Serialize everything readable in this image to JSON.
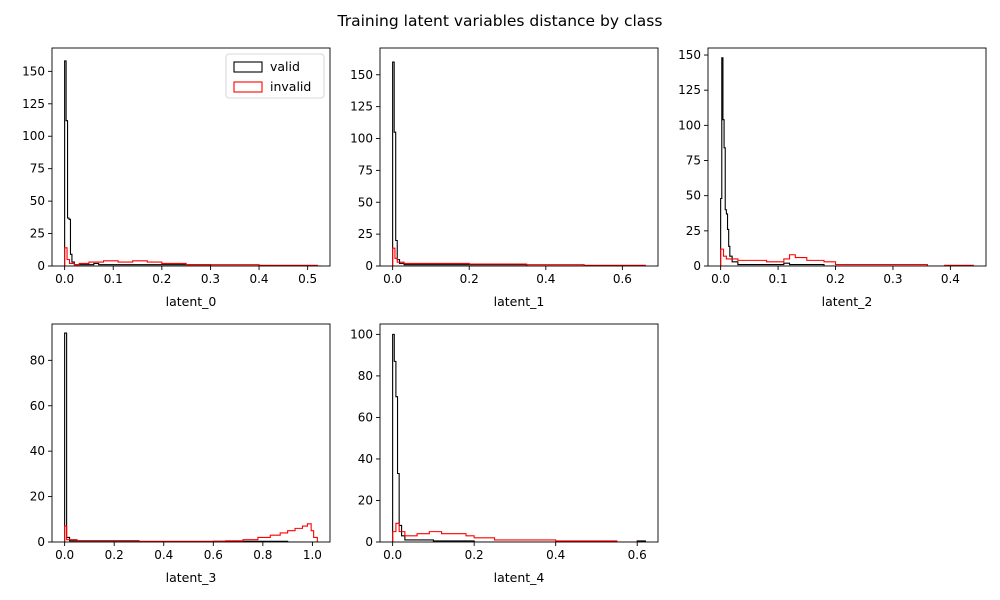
{
  "figure": {
    "title": "Training latent variables distance by class"
  },
  "legend": {
    "entries": [
      {
        "label": "valid",
        "color": "#000000"
      },
      {
        "label": "invalid",
        "color": "#ff0000"
      }
    ],
    "location": "upper right of first subplot"
  },
  "chart_data": [
    {
      "type": "histogram-step",
      "xlabel": "latent_0",
      "xlim": [
        -0.026,
        0.546
      ],
      "ylim": [
        0,
        168
      ],
      "xticks": [
        0.0,
        0.1,
        0.2,
        0.3,
        0.4,
        0.5
      ],
      "xtick_labels": [
        "0.0",
        "0.1",
        "0.2",
        "0.3",
        "0.4",
        "0.5"
      ],
      "yticks": [
        0,
        25,
        50,
        75,
        100,
        125,
        150
      ],
      "ytick_labels": [
        "0",
        "25",
        "50",
        "75",
        "100",
        "125",
        "150"
      ],
      "series": [
        {
          "name": "valid",
          "color": "#000000",
          "points": [
            [
              0,
              0
            ],
            [
              0,
              158
            ],
            [
              0.003,
              158
            ],
            [
              0.003,
              112
            ],
            [
              0.006,
              112
            ],
            [
              0.006,
              37
            ],
            [
              0.009,
              37
            ],
            [
              0.009,
              36
            ],
            [
              0.012,
              36
            ],
            [
              0.012,
              9
            ],
            [
              0.015,
              9
            ],
            [
              0.015,
              3
            ],
            [
              0.02,
              3
            ],
            [
              0.02,
              1
            ],
            [
              0.06,
              1
            ],
            [
              0.06,
              2
            ],
            [
              0.07,
              2
            ],
            [
              0.07,
              1
            ],
            [
              0.3,
              1
            ],
            [
              0.3,
              0
            ],
            [
              0.53,
              0
            ]
          ]
        },
        {
          "name": "invalid",
          "color": "#ff0000",
          "points": [
            [
              0,
              0
            ],
            [
              0,
              14
            ],
            [
              0.005,
              14
            ],
            [
              0.005,
              5
            ],
            [
              0.01,
              5
            ],
            [
              0.01,
              2
            ],
            [
              0.02,
              2
            ],
            [
              0.02,
              1
            ],
            [
              0.03,
              1
            ],
            [
              0.03,
              2
            ],
            [
              0.05,
              2
            ],
            [
              0.05,
              3
            ],
            [
              0.08,
              3
            ],
            [
              0.08,
              4
            ],
            [
              0.11,
              4
            ],
            [
              0.11,
              3
            ],
            [
              0.14,
              3
            ],
            [
              0.14,
              4
            ],
            [
              0.17,
              4
            ],
            [
              0.17,
              3
            ],
            [
              0.2,
              3
            ],
            [
              0.2,
              2
            ],
            [
              0.25,
              2
            ],
            [
              0.25,
              1
            ],
            [
              0.4,
              1
            ],
            [
              0.4,
              0.5
            ],
            [
              0.52,
              0.5
            ],
            [
              0.52,
              0
            ]
          ]
        }
      ]
    },
    {
      "type": "histogram-step",
      "xlabel": "latent_1",
      "xlim": [
        -0.033,
        0.693
      ],
      "ylim": [
        0,
        171
      ],
      "xticks": [
        0.0,
        0.2,
        0.4,
        0.6
      ],
      "xtick_labels": [
        "0.0",
        "0.2",
        "0.4",
        "0.6"
      ],
      "yticks": [
        0,
        25,
        50,
        75,
        100,
        125,
        150
      ],
      "ytick_labels": [
        "0",
        "25",
        "50",
        "75",
        "100",
        "125",
        "150"
      ],
      "series": [
        {
          "name": "valid",
          "color": "#000000",
          "points": [
            [
              0,
              0
            ],
            [
              0,
              160
            ],
            [
              0.004,
              160
            ],
            [
              0.004,
              105
            ],
            [
              0.008,
              105
            ],
            [
              0.008,
              20
            ],
            [
              0.012,
              20
            ],
            [
              0.012,
              5
            ],
            [
              0.018,
              5
            ],
            [
              0.018,
              2
            ],
            [
              0.03,
              2
            ],
            [
              0.03,
              1
            ],
            [
              0.35,
              1
            ],
            [
              0.35,
              0
            ],
            [
              0.66,
              0
            ]
          ]
        },
        {
          "name": "invalid",
          "color": "#ff0000",
          "points": [
            [
              0,
              0
            ],
            [
              0,
              14
            ],
            [
              0.006,
              14
            ],
            [
              0.006,
              6
            ],
            [
              0.012,
              6
            ],
            [
              0.012,
              3
            ],
            [
              0.03,
              3
            ],
            [
              0.03,
              2
            ],
            [
              0.2,
              2
            ],
            [
              0.2,
              1.5
            ],
            [
              0.35,
              1.5
            ],
            [
              0.35,
              1
            ],
            [
              0.5,
              1
            ],
            [
              0.5,
              0.5
            ],
            [
              0.66,
              0.5
            ],
            [
              0.66,
              0
            ]
          ]
        }
      ]
    },
    {
      "type": "histogram-step",
      "xlabel": "latent_2",
      "xlim": [
        -0.022,
        0.462
      ],
      "ylim": [
        0,
        155
      ],
      "xticks": [
        0.0,
        0.1,
        0.2,
        0.3,
        0.4
      ],
      "xtick_labels": [
        "0.0",
        "0.1",
        "0.2",
        "0.3",
        "0.4"
      ],
      "yticks": [
        0,
        25,
        50,
        75,
        100,
        125,
        150
      ],
      "ytick_labels": [
        "0",
        "25",
        "50",
        "75",
        "100",
        "125",
        "150"
      ],
      "series": [
        {
          "name": "valid",
          "color": "#000000",
          "points": [
            [
              0,
              0
            ],
            [
              0,
              48
            ],
            [
              0.002,
              48
            ],
            [
              0.002,
              148
            ],
            [
              0.004,
              148
            ],
            [
              0.004,
              104
            ],
            [
              0.006,
              104
            ],
            [
              0.006,
              84
            ],
            [
              0.008,
              84
            ],
            [
              0.008,
              40
            ],
            [
              0.01,
              40
            ],
            [
              0.01,
              37
            ],
            [
              0.012,
              37
            ],
            [
              0.012,
              26
            ],
            [
              0.014,
              26
            ],
            [
              0.014,
              14
            ],
            [
              0.016,
              14
            ],
            [
              0.016,
              7
            ],
            [
              0.02,
              7
            ],
            [
              0.02,
              3
            ],
            [
              0.03,
              3
            ],
            [
              0.03,
              1
            ],
            [
              0.11,
              1
            ],
            [
              0.11,
              2
            ],
            [
              0.12,
              2
            ],
            [
              0.12,
              1
            ],
            [
              0.18,
              1
            ],
            [
              0.18,
              0
            ],
            [
              0.44,
              0
            ]
          ]
        },
        {
          "name": "invalid",
          "color": "#ff0000",
          "points": [
            [
              0,
              0
            ],
            [
              0,
              12
            ],
            [
              0.005,
              12
            ],
            [
              0.005,
              7
            ],
            [
              0.01,
              7
            ],
            [
              0.01,
              5
            ],
            [
              0.03,
              5
            ],
            [
              0.03,
              4
            ],
            [
              0.08,
              4
            ],
            [
              0.08,
              3
            ],
            [
              0.11,
              3
            ],
            [
              0.11,
              5
            ],
            [
              0.12,
              5
            ],
            [
              0.12,
              8
            ],
            [
              0.13,
              8
            ],
            [
              0.13,
              6
            ],
            [
              0.15,
              6
            ],
            [
              0.15,
              4
            ],
            [
              0.18,
              4
            ],
            [
              0.18,
              3
            ],
            [
              0.2,
              3
            ],
            [
              0.2,
              1
            ],
            [
              0.36,
              1
            ],
            [
              0.36,
              0
            ],
            [
              0.39,
              0
            ],
            [
              0.39,
              0.5
            ],
            [
              0.44,
              0.5
            ],
            [
              0.44,
              0
            ]
          ]
        }
      ]
    },
    {
      "type": "histogram-step",
      "xlabel": "latent_3",
      "xlim": [
        -0.051,
        1.071
      ],
      "ylim": [
        0,
        96
      ],
      "xticks": [
        0.0,
        0.2,
        0.4,
        0.6,
        0.8,
        1.0
      ],
      "xtick_labels": [
        "0.0",
        "0.2",
        "0.4",
        "0.6",
        "0.8",
        "1.0"
      ],
      "yticks": [
        0,
        20,
        40,
        60,
        80
      ],
      "ytick_labels": [
        "0",
        "20",
        "40",
        "60",
        "80"
      ],
      "series": [
        {
          "name": "valid",
          "color": "#000000",
          "points": [
            [
              0,
              0
            ],
            [
              0,
              92
            ],
            [
              0.008,
              92
            ],
            [
              0.008,
              2
            ],
            [
              0.02,
              2
            ],
            [
              0.02,
              0.5
            ],
            [
              0.3,
              0.5
            ],
            [
              0.3,
              0
            ],
            [
              0.6,
              0
            ],
            [
              0.6,
              0.3
            ],
            [
              0.9,
              0.3
            ],
            [
              0.9,
              0
            ],
            [
              1.02,
              0
            ]
          ]
        },
        {
          "name": "invalid",
          "color": "#ff0000",
          "points": [
            [
              0,
              0
            ],
            [
              0,
              7
            ],
            [
              0.008,
              7
            ],
            [
              0.008,
              1
            ],
            [
              0.05,
              1
            ],
            [
              0.05,
              0.3
            ],
            [
              0.65,
              0.3
            ],
            [
              0.65,
              0.5
            ],
            [
              0.72,
              0.5
            ],
            [
              0.72,
              1
            ],
            [
              0.78,
              1
            ],
            [
              0.78,
              2
            ],
            [
              0.83,
              2
            ],
            [
              0.83,
              3
            ],
            [
              0.87,
              3
            ],
            [
              0.87,
              4
            ],
            [
              0.9,
              4
            ],
            [
              0.9,
              5
            ],
            [
              0.93,
              5
            ],
            [
              0.93,
              6
            ],
            [
              0.96,
              6
            ],
            [
              0.96,
              7
            ],
            [
              0.98,
              7
            ],
            [
              0.98,
              8
            ],
            [
              0.995,
              8
            ],
            [
              0.995,
              5
            ],
            [
              1.005,
              5
            ],
            [
              1.005,
              2
            ],
            [
              1.02,
              2
            ],
            [
              1.02,
              0
            ]
          ]
        }
      ]
    },
    {
      "type": "histogram-step",
      "xlabel": "latent_4",
      "xlim": [
        -0.031,
        0.651
      ],
      "ylim": [
        0,
        105
      ],
      "xticks": [
        0.0,
        0.2,
        0.4,
        0.6
      ],
      "xtick_labels": [
        "0.0",
        "0.2",
        "0.4",
        "0.6"
      ],
      "yticks": [
        0,
        20,
        40,
        60,
        80,
        100
      ],
      "ytick_labels": [
        "0",
        "20",
        "40",
        "60",
        "80",
        "100"
      ],
      "series": [
        {
          "name": "valid",
          "color": "#000000",
          "points": [
            [
              0,
              0
            ],
            [
              0,
              100
            ],
            [
              0.004,
              100
            ],
            [
              0.004,
              87
            ],
            [
              0.008,
              87
            ],
            [
              0.008,
              70
            ],
            [
              0.012,
              70
            ],
            [
              0.012,
              33
            ],
            [
              0.016,
              33
            ],
            [
              0.016,
              8
            ],
            [
              0.022,
              8
            ],
            [
              0.022,
              3
            ],
            [
              0.03,
              3
            ],
            [
              0.03,
              1
            ],
            [
              0.1,
              1
            ],
            [
              0.1,
              0.5
            ],
            [
              0.2,
              0.5
            ],
            [
              0.2,
              0
            ],
            [
              0.6,
              0
            ],
            [
              0.6,
              0.5
            ],
            [
              0.62,
              0.5
            ],
            [
              0.62,
              0
            ]
          ]
        },
        {
          "name": "invalid",
          "color": "#ff0000",
          "points": [
            [
              0,
              0
            ],
            [
              0,
              5
            ],
            [
              0.008,
              5
            ],
            [
              0.008,
              9
            ],
            [
              0.016,
              9
            ],
            [
              0.016,
              5
            ],
            [
              0.03,
              5
            ],
            [
              0.03,
              3
            ],
            [
              0.06,
              3
            ],
            [
              0.06,
              4
            ],
            [
              0.09,
              4
            ],
            [
              0.09,
              5
            ],
            [
              0.12,
              5
            ],
            [
              0.12,
              4
            ],
            [
              0.18,
              4
            ],
            [
              0.18,
              3
            ],
            [
              0.2,
              3
            ],
            [
              0.2,
              2
            ],
            [
              0.25,
              2
            ],
            [
              0.25,
              1
            ],
            [
              0.4,
              1
            ],
            [
              0.4,
              0.5
            ],
            [
              0.55,
              0.5
            ],
            [
              0.55,
              0
            ],
            [
              0.62,
              0
            ]
          ]
        }
      ]
    }
  ]
}
